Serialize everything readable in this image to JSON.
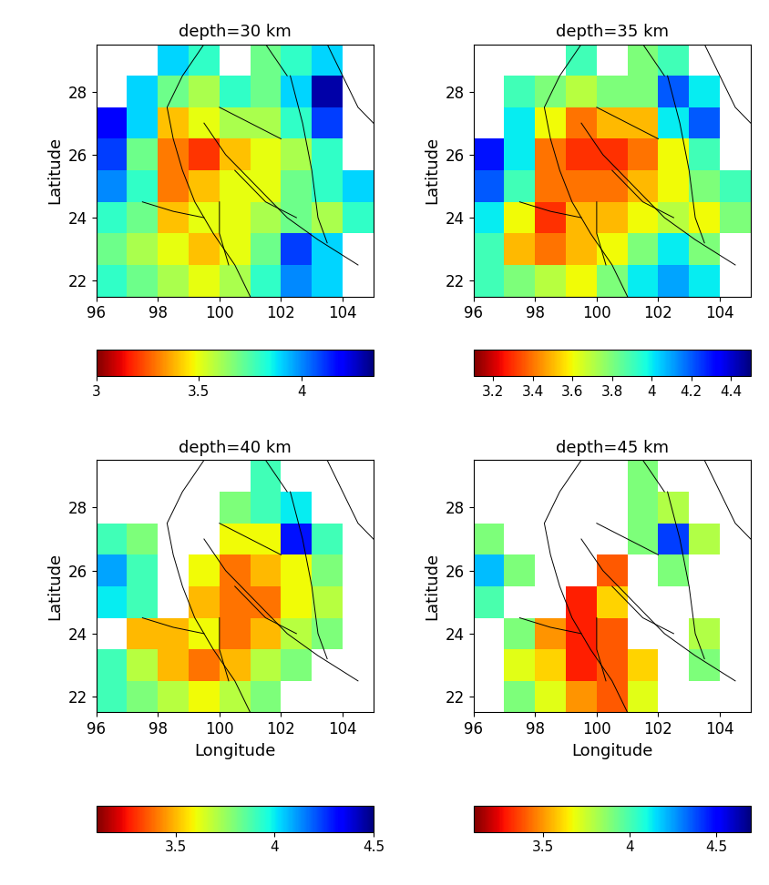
{
  "chart_data": [
    {
      "type": "heatmap",
      "title": "depth=30 km",
      "y_label": "Latitude",
      "xlim": [
        96,
        105
      ],
      "ylim": [
        21.5,
        29.5
      ],
      "xticks": [
        96,
        98,
        100,
        102,
        104
      ],
      "yticks": [
        22,
        24,
        26,
        28
      ],
      "x_edges": [
        96,
        97,
        98,
        99,
        100,
        101,
        102,
        103,
        104,
        105
      ],
      "y_edges": [
        21.5,
        22.5,
        23.5,
        24.5,
        25.5,
        26.5,
        27.5,
        28.5,
        29.5
      ],
      "cells": [
        [
          3.8,
          3.7,
          3.6,
          3.5,
          3.6,
          3.8,
          4.0,
          3.9,
          null
        ],
        [
          3.7,
          3.6,
          3.5,
          3.4,
          3.5,
          3.7,
          4.1,
          3.9,
          null
        ],
        [
          3.8,
          3.7,
          3.4,
          3.5,
          3.5,
          3.6,
          3.7,
          3.6,
          3.8
        ],
        [
          4.0,
          3.8,
          3.3,
          3.4,
          3.5,
          3.5,
          3.7,
          3.8,
          3.9
        ],
        [
          4.1,
          3.7,
          3.3,
          3.2,
          3.4,
          3.5,
          3.6,
          3.8,
          null
        ],
        [
          4.2,
          3.9,
          3.4,
          3.5,
          3.6,
          3.6,
          3.8,
          4.1,
          null
        ],
        [
          null,
          3.9,
          3.7,
          3.6,
          3.8,
          3.7,
          3.9,
          4.3,
          null
        ],
        [
          null,
          null,
          3.9,
          3.8,
          null,
          3.7,
          3.8,
          3.9,
          null
        ]
      ],
      "colorbar": {
        "range": [
          3.0,
          4.35
        ],
        "ticks": [
          3,
          3.5,
          4
        ]
      }
    },
    {
      "type": "heatmap",
      "title": "depth=35 km",
      "y_label": "Latitude",
      "xlim": [
        96,
        105
      ],
      "ylim": [
        21.5,
        29.5
      ],
      "xticks": [
        96,
        98,
        100,
        102,
        104
      ],
      "yticks": [
        22,
        24,
        26,
        28
      ],
      "x_edges": [
        96,
        97,
        98,
        99,
        100,
        101,
        102,
        103,
        104,
        105
      ],
      "y_edges": [
        21.5,
        22.5,
        23.5,
        24.5,
        25.5,
        26.5,
        27.5,
        28.5,
        29.5
      ],
      "cells": [
        [
          3.9,
          3.8,
          3.7,
          3.6,
          3.8,
          4.0,
          4.1,
          4.0,
          null
        ],
        [
          3.9,
          3.5,
          3.4,
          3.5,
          3.6,
          3.8,
          4.0,
          3.8,
          null
        ],
        [
          4.0,
          3.6,
          3.3,
          3.5,
          3.5,
          3.6,
          3.7,
          3.6,
          3.8
        ],
        [
          4.2,
          3.9,
          3.4,
          3.4,
          3.4,
          3.5,
          3.6,
          3.8,
          3.9
        ],
        [
          4.3,
          4.0,
          3.4,
          3.3,
          3.3,
          3.4,
          3.6,
          3.9,
          null
        ],
        [
          null,
          4.0,
          3.6,
          3.4,
          3.5,
          3.5,
          4.0,
          4.2,
          null
        ],
        [
          null,
          3.9,
          3.8,
          3.7,
          3.8,
          3.8,
          4.2,
          4.0,
          null
        ],
        [
          null,
          null,
          null,
          3.9,
          null,
          3.8,
          3.9,
          null,
          null
        ]
      ],
      "colorbar": {
        "range": [
          3.1,
          4.5
        ],
        "ticks": [
          3.2,
          3.4,
          3.6,
          3.8,
          4,
          4.2,
          4.4
        ]
      }
    },
    {
      "type": "heatmap",
      "title": "depth=40 km",
      "x_label": "Longitude",
      "y_label": "Latitude",
      "xlim": [
        96,
        105
      ],
      "ylim": [
        21.5,
        29.5
      ],
      "xticks": [
        96,
        98,
        100,
        102,
        104
      ],
      "yticks": [
        22,
        24,
        26,
        28
      ],
      "x_edges": [
        96,
        97,
        98,
        99,
        100,
        101,
        102,
        103,
        104,
        105
      ],
      "y_edges": [
        21.5,
        22.5,
        23.5,
        24.5,
        25.5,
        26.5,
        27.5,
        28.5,
        29.5
      ],
      "cells": [
        [
          3.9,
          3.8,
          3.7,
          3.6,
          3.7,
          3.8,
          null,
          null,
          null
        ],
        [
          3.9,
          3.7,
          3.5,
          3.4,
          3.5,
          3.7,
          3.8,
          null,
          null
        ],
        [
          null,
          3.5,
          3.5,
          3.6,
          3.4,
          3.5,
          3.7,
          3.8,
          null
        ],
        [
          4.0,
          3.9,
          null,
          3.5,
          3.4,
          3.4,
          3.6,
          3.7,
          null
        ],
        [
          4.1,
          3.9,
          null,
          3.6,
          3.4,
          3.5,
          3.6,
          3.8,
          null
        ],
        [
          3.9,
          3.8,
          null,
          null,
          3.6,
          3.6,
          4.3,
          3.9,
          null
        ],
        [
          null,
          null,
          null,
          null,
          3.8,
          3.9,
          4.0,
          null,
          null
        ],
        [
          null,
          null,
          null,
          null,
          null,
          3.9,
          null,
          null,
          null
        ]
      ],
      "colorbar": {
        "range": [
          3.1,
          4.5
        ],
        "ticks": [
          3.5,
          4,
          4.5
        ]
      }
    },
    {
      "type": "heatmap",
      "title": "depth=45 km",
      "x_label": "Longitude",
      "y_label": "Latitude",
      "xlim": [
        96,
        105
      ],
      "ylim": [
        21.5,
        29.5
      ],
      "xticks": [
        96,
        98,
        100,
        102,
        104
      ],
      "yticks": [
        22,
        24,
        26,
        28
      ],
      "x_edges": [
        96,
        97,
        98,
        99,
        100,
        101,
        102,
        103,
        104,
        105
      ],
      "y_edges": [
        21.5,
        22.5,
        23.5,
        24.5,
        25.5,
        26.5,
        27.5,
        28.5,
        29.5
      ],
      "cells": [
        [
          null,
          3.9,
          3.7,
          3.5,
          3.4,
          3.7,
          null,
          null,
          null
        ],
        [
          null,
          3.7,
          3.6,
          3.3,
          3.4,
          3.6,
          null,
          3.9,
          null
        ],
        [
          null,
          3.9,
          3.5,
          3.3,
          3.4,
          null,
          null,
          3.8,
          null
        ],
        [
          4.0,
          null,
          null,
          3.3,
          3.6,
          null,
          null,
          null,
          null
        ],
        [
          4.2,
          3.9,
          null,
          null,
          3.4,
          null,
          3.9,
          null,
          null
        ],
        [
          3.9,
          null,
          null,
          null,
          null,
          3.9,
          4.4,
          3.8,
          null
        ],
        [
          null,
          null,
          null,
          null,
          null,
          3.9,
          3.8,
          null,
          null
        ],
        [
          null,
          null,
          null,
          null,
          null,
          3.9,
          null,
          null,
          null
        ]
      ],
      "colorbar": {
        "range": [
          3.1,
          4.7
        ],
        "ticks": [
          3.5,
          4,
          4.5
        ]
      }
    }
  ],
  "faults": [
    [
      [
        99.5,
        27.0
      ],
      [
        100.2,
        26.0
      ],
      [
        101.2,
        25.0
      ],
      [
        102.2,
        24.0
      ],
      [
        103.2,
        23.3
      ],
      [
        104.5,
        22.5
      ]
    ],
    [
      [
        102.3,
        28.5
      ],
      [
        102.7,
        27.0
      ],
      [
        103.0,
        25.5
      ],
      [
        103.2,
        24.0
      ],
      [
        103.5,
        23.2
      ]
    ],
    [
      [
        101.5,
        29.5
      ],
      [
        102.2,
        28.5
      ]
    ],
    [
      [
        99.5,
        29.5
      ],
      [
        98.8,
        28.5
      ],
      [
        98.3,
        27.5
      ],
      [
        98.5,
        26.5
      ],
      [
        98.8,
        25.5
      ],
      [
        99.2,
        24.5
      ],
      [
        99.8,
        23.5
      ],
      [
        100.5,
        22.5
      ],
      [
        101.0,
        21.5
      ]
    ],
    [
      [
        97.5,
        24.5
      ],
      [
        98.5,
        24.2
      ],
      [
        99.5,
        24.0
      ]
    ],
    [
      [
        100.0,
        27.5
      ],
      [
        101.0,
        27.0
      ],
      [
        102.0,
        26.5
      ]
    ],
    [
      [
        100.5,
        25.5
      ],
      [
        101.5,
        24.5
      ],
      [
        102.5,
        24.0
      ]
    ],
    [
      [
        100.0,
        24.5
      ],
      [
        100.0,
        23.5
      ],
      [
        100.3,
        22.5
      ]
    ],
    [
      [
        103.5,
        29.5
      ],
      [
        104.0,
        28.5
      ],
      [
        104.5,
        27.5
      ],
      [
        105.0,
        27.0
      ]
    ]
  ]
}
